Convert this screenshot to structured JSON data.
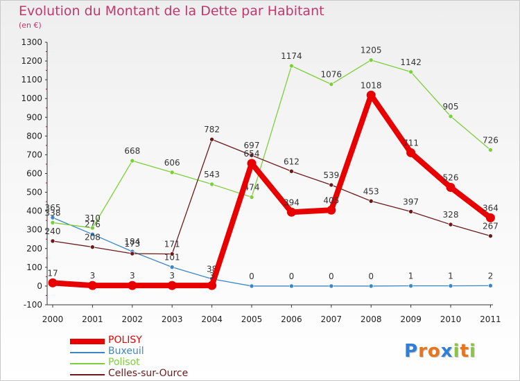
{
  "title": "Evolution du Montant de la Dette par Habitant",
  "subtitle": "(en €)",
  "logo_text": "Proxiti",
  "chart_data": {
    "type": "line",
    "x": [
      "2000",
      "2001",
      "2002",
      "2003",
      "2004",
      "2005",
      "2006",
      "2007",
      "2008",
      "2009",
      "2010",
      "2011"
    ],
    "ylim": [
      -100,
      1300
    ],
    "yticks": [
      -100,
      0,
      100,
      200,
      300,
      400,
      500,
      600,
      700,
      800,
      900,
      1000,
      1100,
      1200,
      1300
    ],
    "grid": false,
    "legend_position": "bottom-left",
    "series": [
      {
        "name": "POLISY",
        "color": "#e80000",
        "values": [
          17,
          3,
          3,
          3,
          3,
          654,
          394,
          405,
          1018,
          711,
          526,
          364
        ]
      },
      {
        "name": "Buxeuil",
        "color": "#3d86c6",
        "values": [
          365,
          276,
          184,
          101,
          38,
          0,
          0,
          0,
          0,
          1,
          1,
          2
        ]
      },
      {
        "name": "Polisot",
        "color": "#7ccf3a",
        "values": [
          338,
          310,
          668,
          606,
          543,
          474,
          1174,
          1076,
          1205,
          1142,
          905,
          726
        ]
      },
      {
        "name": "Celles-sur-Ource",
        "color": "#6b1a1a",
        "values": [
          240,
          208,
          173,
          171,
          782,
          697,
          612,
          539,
          453,
          397,
          328,
          267
        ]
      }
    ]
  }
}
